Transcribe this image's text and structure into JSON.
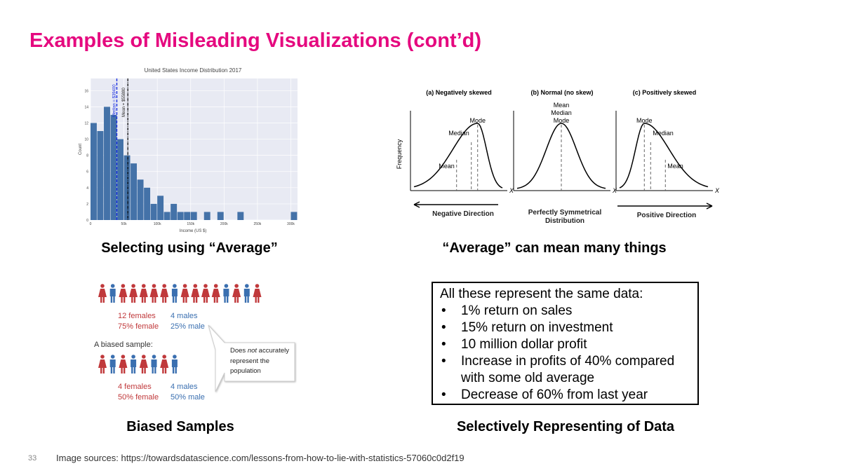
{
  "slide": {
    "title": "Examples of Misleading Visualizations (cont’d)",
    "page_number": "33",
    "footer": "Image sources: https://towardsdatascience.com/lessons-from-how-to-lie-with-statistics-57060c0d2f19"
  },
  "captions": {
    "top_left": "Selecting using “Average”",
    "top_right": "“Average” can mean many things",
    "bottom_left": "Biased Samples",
    "bottom_right": "Selectively Representing of Data"
  },
  "histogram": {
    "title": "United States Income Distribution 2017",
    "xlabel": "Income (US $)",
    "ylabel": "Count",
    "bin_width": 10000,
    "counts": [
      12,
      11,
      14,
      13,
      10,
      8,
      7,
      5,
      4,
      2,
      3,
      1,
      2,
      1,
      1,
      1,
      0,
      1,
      0,
      1,
      0,
      0,
      1,
      0,
      0,
      0,
      0,
      0,
      0,
      0,
      1
    ],
    "x_ticks": [
      "0",
      "50k",
      "100k",
      "150k",
      "200k",
      "250k",
      "300k"
    ],
    "y_ticks": [
      "0",
      "2",
      "4",
      "6",
      "8",
      "10",
      "12",
      "14",
      "16"
    ],
    "ylim": [
      0,
      17.5
    ],
    "xlim": [
      0,
      310000
    ],
    "median": 39400,
    "mean": 55880,
    "median_label": "Median = $39400",
    "mean_label": "Mean = $55880",
    "bar_color": "#4472a8",
    "median_color": "#1a2fe0",
    "bg_color": "#e8eaf3"
  },
  "skew": {
    "panels": [
      {
        "title": "(a) Negatively skewed",
        "labels": [
          "Mode",
          "Median",
          "Mean"
        ]
      },
      {
        "title": "(b) Normal (no skew)",
        "labels": [
          "Mean",
          "Median",
          "Mode"
        ]
      },
      {
        "title": "(c) Positively skewed",
        "labels": [
          "Mode",
          "Median",
          "Mean"
        ]
      }
    ],
    "ylabel": "Frequency",
    "xlabel": "X",
    "directions": [
      "Negative Direction",
      "Perfectly Symmetrical",
      "Distribution",
      "Positive Direction"
    ]
  },
  "sample": {
    "population_row": [
      "F",
      "M",
      "F",
      "F",
      "F",
      "F",
      "F",
      "M",
      "F",
      "F",
      "F",
      "F",
      "M",
      "F",
      "M",
      "F"
    ],
    "pop_female": [
      "12 females",
      "75% female"
    ],
    "pop_male": [
      "4 males",
      "25% male"
    ],
    "biased_label": "A biased sample:",
    "sample_row": [
      "F",
      "M",
      "F",
      "M",
      "F",
      "M",
      "F",
      "M"
    ],
    "s_female": [
      "4 females",
      "50% female"
    ],
    "s_male": [
      "4 males",
      "50% male"
    ],
    "callout": [
      "Does ",
      "not",
      " accurately",
      "represent the",
      "population"
    ],
    "female_color": "#c0393b",
    "male_color": "#3a6fb0"
  },
  "box": {
    "intro": "All these represent the same data:",
    "items": [
      "1% return on sales",
      "15% return on investment",
      "10 million dollar profit",
      "Increase in profits of 40% compared with some old average",
      "Decrease of 60% from last year"
    ]
  }
}
